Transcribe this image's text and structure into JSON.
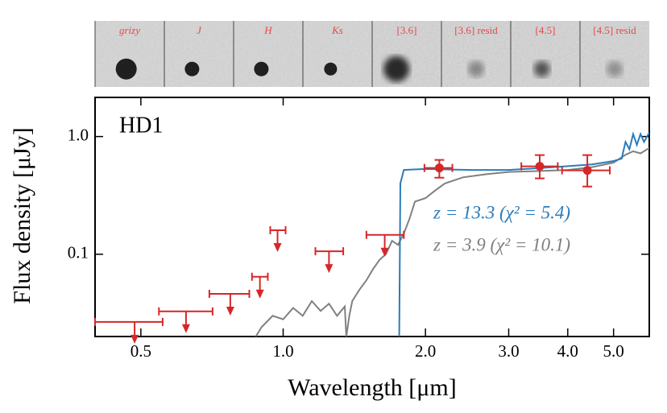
{
  "chart_data": {
    "type": "sed",
    "source_label": "HD1",
    "xlabel": "Wavelength [μm]",
    "ylabel": "Flux density [μJy]",
    "log_x": true,
    "log_y": true,
    "xlim": [
      0.4,
      5.95
    ],
    "ylim": [
      0.02,
      2.15
    ],
    "xticks": [
      0.5,
      {
        "value": 1,
        "label": "1.0"
      },
      {
        "value": 2,
        "label": "2.0"
      },
      {
        "value": 3,
        "label": "3.0"
      },
      {
        "value": 4,
        "label": "4.0"
      },
      {
        "value": 5,
        "label": "5.0"
      }
    ],
    "yticks": [
      0.1,
      {
        "value": 1,
        "label": "1.0"
      }
    ],
    "cutouts": [
      "grizy",
      "J",
      "H",
      "Ks",
      "[3.6]",
      "[3.6] resid",
      "[4.5]",
      "[4.5] resid"
    ],
    "models": [
      {
        "name": "z = 13.3 (χ² = 5.4)",
        "color": "#2b7bba",
        "x": [
          1.76,
          1.77,
          1.8,
          2.0,
          2.5,
          3.0,
          3.5,
          4.0,
          4.5,
          5.0,
          5.2,
          5.3,
          5.4,
          5.5,
          5.6,
          5.7,
          5.8,
          5.95
        ],
        "values": [
          0.02,
          0.4,
          0.52,
          0.53,
          0.52,
          0.52,
          0.54,
          0.56,
          0.58,
          0.62,
          0.65,
          0.9,
          0.78,
          1.05,
          0.85,
          1.05,
          0.9,
          1.08
        ]
      },
      {
        "name": "z = 3.9 (χ² = 10.1)",
        "color": "#808080",
        "x": [
          0.875,
          0.9,
          0.95,
          1.0,
          1.05,
          1.1,
          1.15,
          1.2,
          1.25,
          1.3,
          1.35,
          1.36,
          1.38,
          1.4,
          1.45,
          1.5,
          1.55,
          1.6,
          1.65,
          1.7,
          1.75,
          1.8,
          1.85,
          1.9,
          2.0,
          2.1,
          2.2,
          2.4,
          2.7,
          3.0,
          3.5,
          4.0,
          4.5,
          5.0,
          5.3,
          5.5,
          5.7,
          5.95
        ],
        "values": [
          0.02,
          0.024,
          0.03,
          0.028,
          0.035,
          0.03,
          0.04,
          0.033,
          0.038,
          0.03,
          0.036,
          0.02,
          0.03,
          0.04,
          0.05,
          0.06,
          0.075,
          0.09,
          0.1,
          0.13,
          0.12,
          0.15,
          0.2,
          0.28,
          0.3,
          0.35,
          0.4,
          0.45,
          0.48,
          0.5,
          0.51,
          0.52,
          0.55,
          0.6,
          0.7,
          0.75,
          0.72,
          0.8
        ]
      }
    ],
    "upper_limits": {
      "color": "#d62728",
      "x": [
        0.485,
        0.623,
        0.773,
        0.893,
        0.973,
        1.25,
        1.64
      ],
      "x_low": [
        0.4,
        0.546,
        0.698,
        0.859,
        0.939,
        1.17,
        1.5
      ],
      "x_high": [
        0.556,
        0.709,
        0.848,
        0.928,
        1.012,
        1.34,
        1.8
      ],
      "values": [
        0.0266,
        0.0327,
        0.0461,
        0.0644,
        0.16,
        0.106,
        0.146
      ]
    },
    "detections": {
      "color": "#d62728",
      "x": [
        2.14,
        3.49,
        4.4
      ],
      "x_low": [
        1.99,
        3.19,
        3.89
      ],
      "x_high": [
        2.28,
        3.81,
        4.91
      ],
      "values": [
        0.541,
        0.558,
        0.516
      ],
      "y_low": [
        0.447,
        0.441,
        0.376
      ],
      "y_high": [
        0.633,
        0.696,
        0.696
      ]
    }
  }
}
